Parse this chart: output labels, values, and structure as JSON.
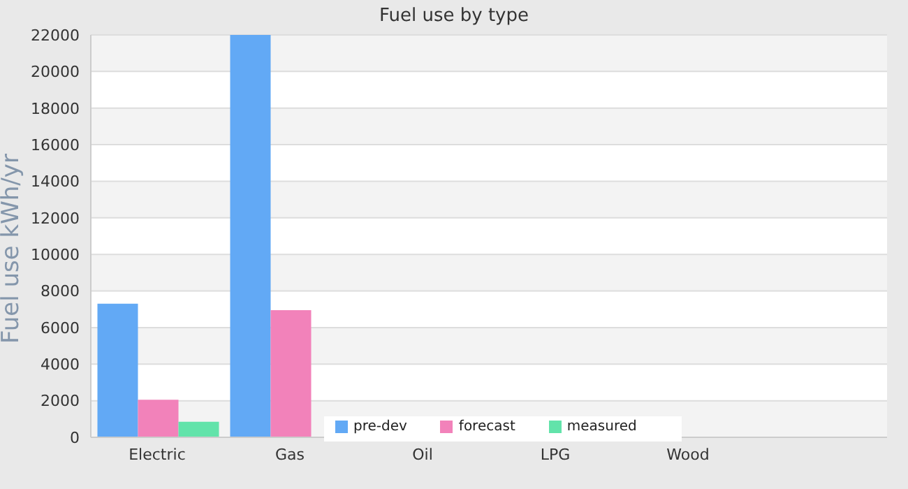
{
  "chart_data": {
    "type": "bar",
    "title": "Fuel use by type",
    "ylabel": "Fuel use  kWh/yr",
    "categories": [
      "Electric",
      "Gas",
      "Oil",
      "LPG",
      "Wood",
      null
    ],
    "series": [
      {
        "name": "pre-dev",
        "color": "#62a9f5",
        "values": [
          7300,
          22000,
          null,
          null,
          null,
          null
        ]
      },
      {
        "name": "forecast",
        "color": "#f282ba",
        "values": [
          2050,
          6950,
          null,
          null,
          null,
          null
        ]
      },
      {
        "name": "measured",
        "color": "#62e3aa",
        "values": [
          850,
          null,
          null,
          null,
          null,
          null
        ]
      }
    ],
    "ylim": [
      0,
      22000
    ],
    "yticks": [
      0,
      2000,
      4000,
      6000,
      8000,
      10000,
      12000,
      14000,
      16000,
      18000,
      20000,
      22000
    ],
    "grid": "y",
    "legend": "bottom"
  }
}
